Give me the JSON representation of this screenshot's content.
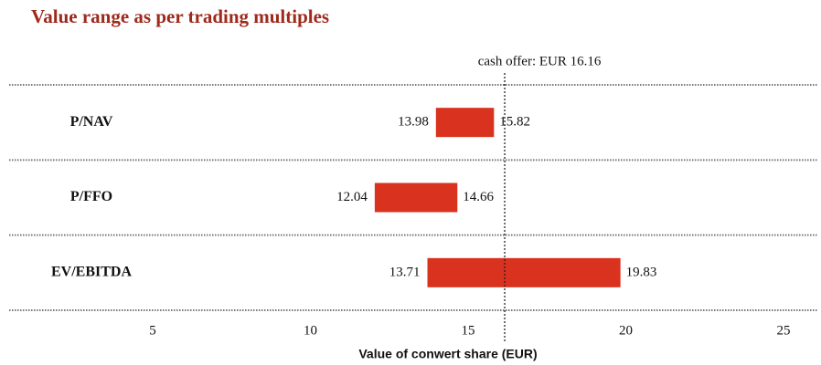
{
  "chart_data": {
    "type": "range-bar",
    "title": "Value range as per trading multiples",
    "categories": [
      "P/NAV",
      "P/FFO",
      "EV/EBITDA"
    ],
    "low": [
      13.98,
      12.04,
      13.71
    ],
    "high": [
      15.82,
      14.66,
      19.83
    ],
    "color": "#d9321f",
    "reference": {
      "value": 16.16,
      "label": "cash offer: EUR 16.16"
    },
    "xlabel": "Value of conwert share (EUR)",
    "xlim": [
      0.45,
      26.1
    ],
    "xticks": [
      5,
      10,
      15,
      20,
      25
    ]
  }
}
